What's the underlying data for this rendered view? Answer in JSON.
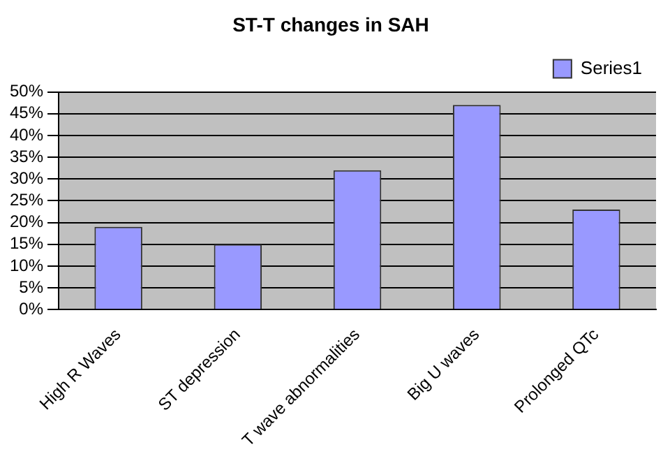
{
  "chart_data": {
    "type": "bar",
    "title": "ST-T changes in SAH",
    "categories": [
      "High R Waves",
      "ST depression",
      "T wave abnormalities",
      "Big U waves",
      "Prolonged QTc"
    ],
    "series": [
      {
        "name": "Series1",
        "color": "#9999ff",
        "values": [
          19,
          15,
          32,
          47,
          23
        ]
      }
    ],
    "ylim": [
      0,
      50
    ],
    "yticks": [
      {
        "value": 0,
        "label": "0%"
      },
      {
        "value": 5,
        "label": "5%"
      },
      {
        "value": 10,
        "label": "10%"
      },
      {
        "value": 15,
        "label": "15%"
      },
      {
        "value": 20,
        "label": "20%"
      },
      {
        "value": 25,
        "label": "25%"
      },
      {
        "value": 30,
        "label": "30%"
      },
      {
        "value": 35,
        "label": "35%"
      },
      {
        "value": 40,
        "label": "40%"
      },
      {
        "value": 45,
        "label": "45%"
      },
      {
        "value": 50,
        "label": "50%"
      }
    ],
    "grid": "y",
    "legend": "top right"
  }
}
